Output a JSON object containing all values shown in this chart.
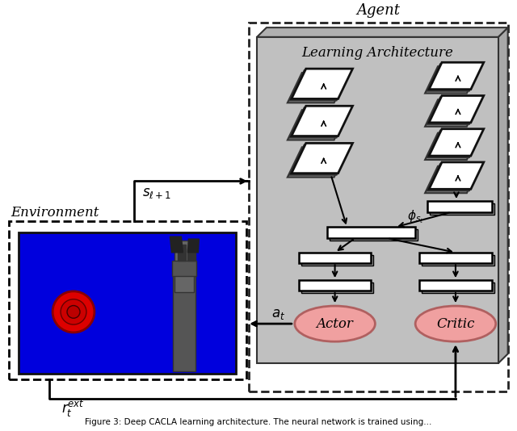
{
  "title": "Agent",
  "env_label": "Environment",
  "arch_label": "Learning Architecture",
  "actor_label": "Actor",
  "critic_label": "Critic",
  "s_label": "$s_{\\ell+1}$",
  "a_label": "$a_t$",
  "r_label": "$r_t^{ext}$",
  "phi_label": "$\\phi_{s_t}$",
  "bg_color": "#ffffff",
  "agent_box_color": "#c0c0c0",
  "agent_box_edge": "#333333",
  "env_box_bg": "#0000dd",
  "dashed_box_color": "#222222",
  "actor_color": "#f0a0a0",
  "critic_color": "#f0a0a0",
  "arrow_color": "#111111",
  "caption": "Figure 3: Deep CACLA learning architecture. The neural network is trained using..."
}
